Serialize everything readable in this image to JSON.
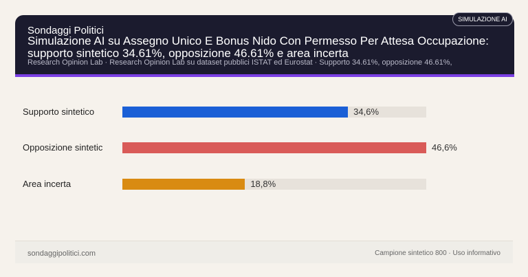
{
  "header": {
    "brand": "Sondaggi Politici",
    "title": "Simulazione AI su Assegno Unico E Bonus Nido Con Permesso Per Attesa Occupazione: supporto sintetico 34.61%, opposizione 46.61% e area incerta",
    "subtitle": "Research Opinion Lab · Research Opinion Lab su dataset pubblici ISTAT ed Eurostat · Supporto 34.61%, opposizione 46.61%,",
    "badge": "SIMULAZIONE AI"
  },
  "chart_data": {
    "type": "bar",
    "orientation": "horizontal",
    "categories": [
      "Supporto sintetico",
      "Opposizione sintetic",
      "Area incerta"
    ],
    "values": [
      34.6,
      46.6,
      18.8
    ],
    "value_labels": [
      "34,6%",
      "46,6%",
      "18,8%"
    ],
    "xlim": [
      0,
      46.6
    ],
    "colors": [
      "#1a5fd6",
      "#d95b58",
      "#d98b12"
    ],
    "track_color": "#e7e2db"
  },
  "footer": {
    "left": "sondaggipolitici.com",
    "right": "Campione sintetico 800 · Uso informativo"
  }
}
